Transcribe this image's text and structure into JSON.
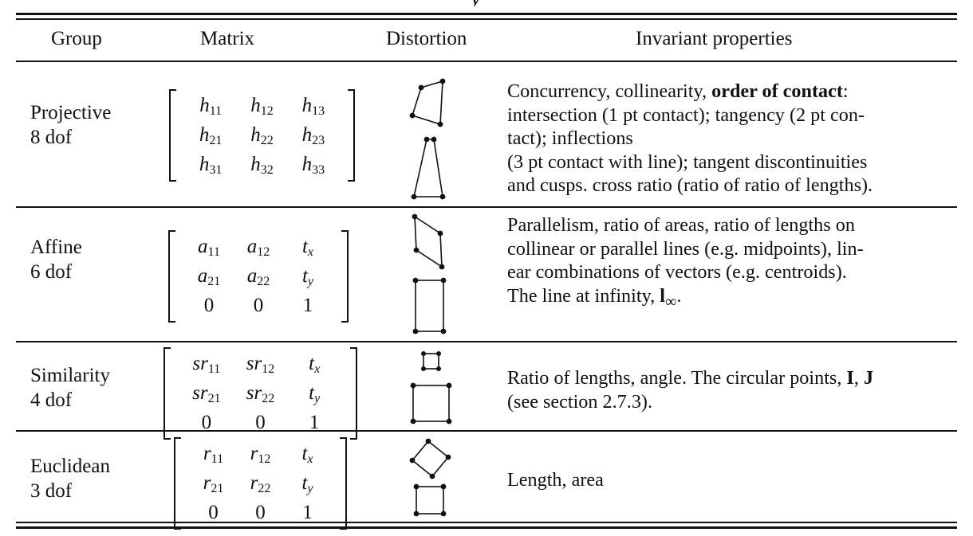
{
  "table": {
    "title_fragment": "y",
    "headers": {
      "group": "Group",
      "matrix": "Matrix",
      "distortion": "Distortion",
      "invariant": "Invariant properties"
    },
    "rows": [
      {
        "group": "Projective",
        "dof": "8 dof",
        "matrix": [
          [
            [
              "h",
              "11"
            ],
            [
              "h",
              "12"
            ],
            [
              "h",
              "13"
            ]
          ],
          [
            [
              "h",
              "21"
            ],
            [
              "h",
              "22"
            ],
            [
              "h",
              "23"
            ]
          ],
          [
            [
              "h",
              "31"
            ],
            [
              "h",
              "32"
            ],
            [
              "h",
              "33"
            ]
          ]
        ],
        "distortion_icons": [
          "projective-quad-icon",
          "trapezoid-icon"
        ],
        "invariant_lines": [
          "Concurrency, collinearity, <b>order of contact</b>:",
          "intersection (1 pt contact); tangency (2 pt con-",
          "tact); inflections",
          "(3 pt contact with line); tangent discontinuities",
          "and cusps. cross ratio (ratio of ratio of lengths)."
        ]
      },
      {
        "group": "Affine",
        "dof": "6 dof",
        "matrix": [
          [
            [
              "a",
              "11"
            ],
            [
              "a",
              "12"
            ],
            [
              "t",
              "x"
            ]
          ],
          [
            [
              "a",
              "21"
            ],
            [
              "a",
              "22"
            ],
            [
              "t",
              "y"
            ]
          ],
          [
            [
              "0",
              ""
            ],
            [
              "0",
              ""
            ],
            [
              "1",
              ""
            ]
          ]
        ],
        "distortion_icons": [
          "parallelogram-icon",
          "rectangle-icon"
        ],
        "invariant_lines": [
          "Parallelism, ratio of areas, ratio of lengths on",
          "collinear or parallel lines (e.g. midpoints), lin-",
          "ear combinations of vectors (e.g. centroids).",
          "The line at infinity, <b>l</b><sub>∞</sub>."
        ]
      },
      {
        "group": "Similarity",
        "dof": "4 dof",
        "matrix": [
          [
            [
              "sr",
              "11"
            ],
            [
              "sr",
              "12"
            ],
            [
              "t",
              "x"
            ]
          ],
          [
            [
              "sr",
              "21"
            ],
            [
              "sr",
              "22"
            ],
            [
              "t",
              "y"
            ]
          ],
          [
            [
              "0",
              ""
            ],
            [
              "0",
              ""
            ],
            [
              "1",
              ""
            ]
          ]
        ],
        "distortion_icons": [
          "small-square-icon",
          "large-square-icon"
        ],
        "invariant_lines": [
          "Ratio of lengths, angle. The circular points, <b>I</b>, <b>J</b>",
          "(see section 2.7.3)."
        ]
      },
      {
        "group": "Euclidean",
        "dof": "3 dof",
        "matrix": [
          [
            [
              "r",
              "11"
            ],
            [
              "r",
              "12"
            ],
            [
              "t",
              "x"
            ]
          ],
          [
            [
              "r",
              "21"
            ],
            [
              "r",
              "22"
            ],
            [
              "t",
              "y"
            ]
          ],
          [
            [
              "0",
              ""
            ],
            [
              "0",
              ""
            ],
            [
              "1",
              ""
            ]
          ]
        ],
        "distortion_icons": [
          "rotated-square-icon",
          "square-icon"
        ],
        "invariant_lines": [
          "Length, area"
        ]
      }
    ]
  }
}
